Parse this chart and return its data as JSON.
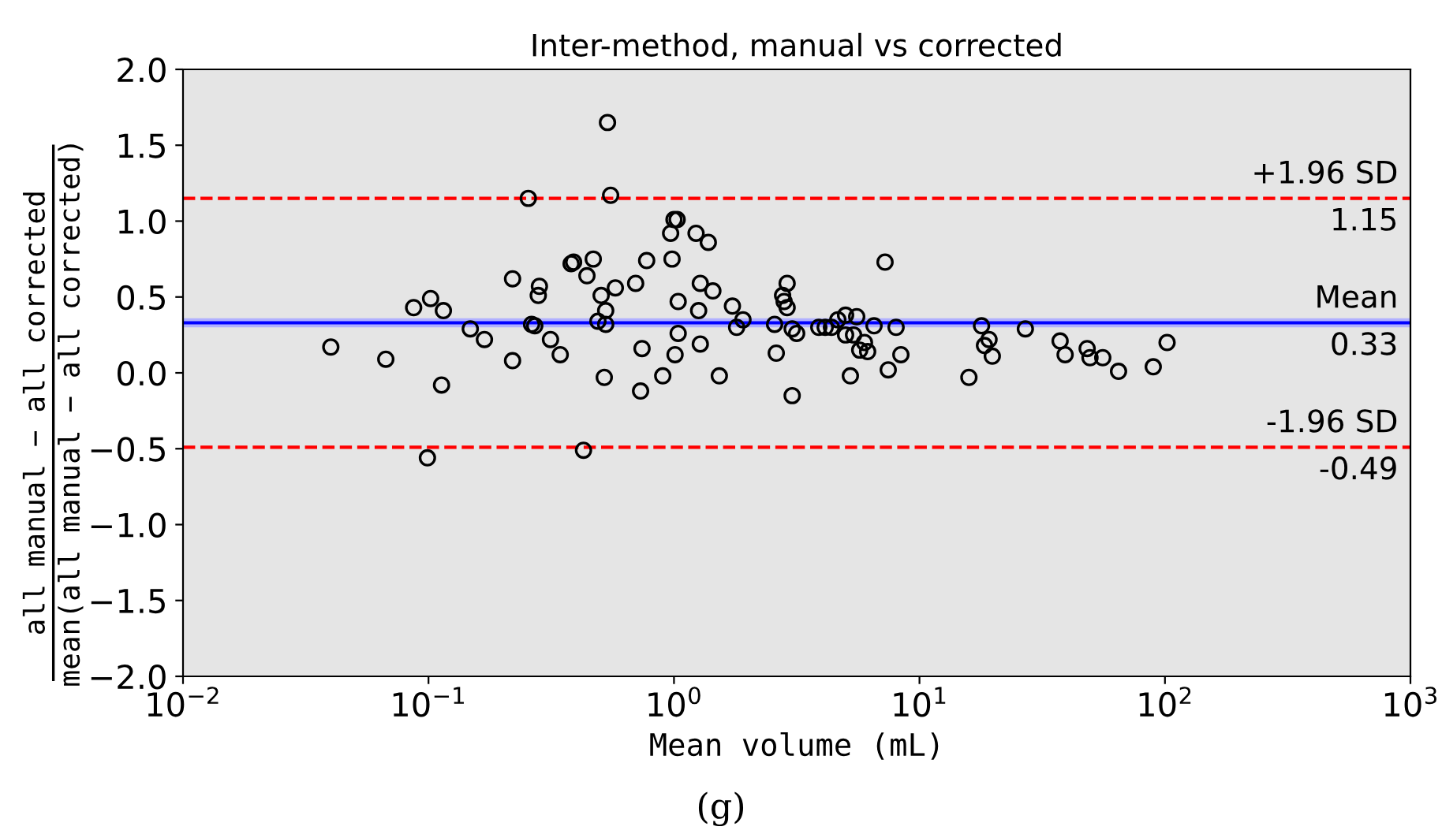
{
  "chart_data": {
    "type": "scatter",
    "title": "Inter-method, manual vs corrected",
    "xlabel": "Mean volume (mL)",
    "ylabel": "all manual − all corrected\nmean(all manual − all corrected)",
    "log": "x",
    "marker": "circle",
    "grid": false,
    "xlim": [
      0.01,
      1000
    ],
    "xticks": [
      {
        "value": 0.01,
        "label": "10$^{−2}$"
      },
      {
        "value": 0.1,
        "label": "10$^{−1}$"
      },
      {
        "value": 1,
        "label": "10$^{0}$"
      },
      {
        "value": 10,
        "label": "10$^{1}$"
      },
      {
        "value": 100,
        "label": "10$^{2}$"
      },
      {
        "value": 1000,
        "label": "10$^{3}$"
      }
    ],
    "ylim": [
      -2.0,
      2.0
    ],
    "yticks": [
      {
        "value": -2.0,
        "label": "−2.0"
      },
      {
        "value": -1.5,
        "label": "−1.5"
      },
      {
        "value": -1.0,
        "label": "−1.0"
      },
      {
        "value": -0.5,
        "label": "−0.5"
      },
      {
        "value": 0.0,
        "label": "0.0"
      },
      {
        "value": 0.5,
        "label": "0.5"
      },
      {
        "value": 1.0,
        "label": "1.0"
      },
      {
        "value": 1.5,
        "label": "1.5"
      },
      {
        "value": 2.0,
        "label": "2.0"
      }
    ],
    "series": [
      {
        "color": "#000000",
        "x": [
          0.04,
          0.067,
          0.087,
          0.102,
          0.115,
          0.113,
          0.099,
          0.148,
          0.169,
          0.22,
          0.22,
          0.255,
          0.263,
          0.271,
          0.283,
          0.28,
          0.314,
          0.344,
          0.381,
          0.39,
          0.469,
          0.442,
          0.505,
          0.49,
          0.527,
          0.527,
          0.536,
          0.552,
          0.52,
          0.428,
          0.577,
          0.698,
          0.741,
          0.731,
          0.774,
          0.9,
          0.969,
          0.982,
          1.0,
          1.03,
          1.01,
          1.04,
          1.04,
          1.23,
          1.26,
          1.28,
          1.28,
          1.38,
          1.44,
          1.53,
          1.73,
          1.8,
          1.91,
          2.57,
          2.61,
          2.77,
          2.81,
          2.89,
          2.89,
          3.03,
          3.16,
          3.03,
          3.89,
          4.13,
          4.38,
          4.65,
          5.0,
          5.0,
          5.23,
          5.39,
          5.55,
          5.71,
          5.97,
          6.15,
          6.53,
          7.24,
          7.46,
          8.03,
          8.4,
          15.9,
          17.9,
          19.2,
          18.4,
          19.8,
          27.0,
          37.4,
          39.2,
          48.2,
          49.5,
          55.8,
          64.7,
          89.6,
          102
        ],
        "values": [
          0.17,
          0.09,
          0.43,
          0.49,
          0.41,
          -0.08,
          -0.56,
          0.29,
          0.22,
          0.62,
          0.08,
          1.15,
          0.32,
          0.31,
          0.57,
          0.51,
          0.22,
          0.12,
          0.72,
          0.73,
          0.75,
          0.64,
          0.51,
          0.34,
          0.32,
          0.41,
          1.65,
          1.17,
          -0.03,
          -0.51,
          0.56,
          0.59,
          0.16,
          -0.12,
          0.74,
          -0.02,
          0.92,
          0.75,
          1.01,
          1.01,
          0.12,
          0.47,
          0.26,
          0.92,
          0.41,
          0.59,
          0.19,
          0.86,
          0.54,
          -0.02,
          0.44,
          0.3,
          0.35,
          0.32,
          0.13,
          0.51,
          0.47,
          0.43,
          0.59,
          0.29,
          0.26,
          -0.15,
          0.3,
          0.3,
          0.3,
          0.35,
          0.38,
          0.25,
          -0.02,
          0.25,
          0.37,
          0.15,
          0.2,
          0.14,
          0.31,
          0.73,
          0.02,
          0.3,
          0.12,
          -0.03,
          0.31,
          0.22,
          0.18,
          0.11,
          0.29,
          0.21,
          0.12,
          0.16,
          0.1,
          0.1,
          0.01,
          0.04,
          0.2
        ]
      }
    ],
    "ref_lines": [
      {
        "axis": "y",
        "value": 1.15,
        "label": "+1.96 SD",
        "color": "#ff0000",
        "line_style": "dashed"
      },
      {
        "axis": "y",
        "value": 0.33,
        "label": "Mean",
        "color": "#0000ff",
        "line_style": "solid"
      },
      {
        "axis": "y",
        "value": -0.49,
        "label": "-1.96 SD",
        "color": "#ff0000",
        "line_style": "dashed"
      }
    ],
    "bands": [
      {
        "axis": "y",
        "from": 0.3,
        "to": 0.36,
        "color": "#b0b0ff"
      }
    ],
    "annotations": [
      {
        "text": "1.15",
        "y": 1.15
      },
      {
        "text": "0.33",
        "y": 0.33
      },
      {
        "text": "-0.49",
        "y": -0.49
      },
      "(g)"
    ]
  }
}
